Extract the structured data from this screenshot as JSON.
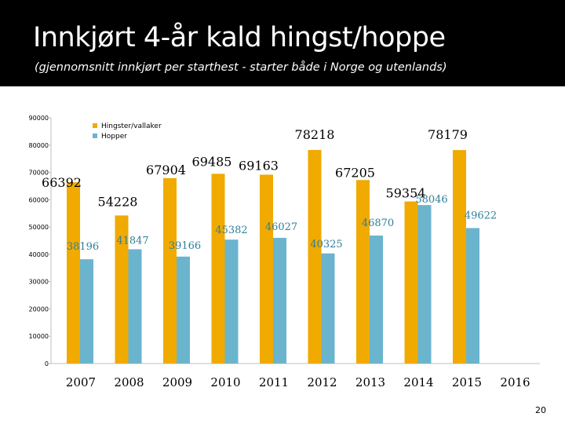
{
  "slide": {
    "title": "Innkjørt 4-år kald hingst/hoppe",
    "subtitle": "(gjennomsnitt innkjørt per starthest - starter både i Norge og utenlands)",
    "page_number": "20"
  },
  "colors": {
    "header_bg": "#000000",
    "series_a": "#F0AA00",
    "series_b": "#6BB4CE",
    "label_a": "#000000",
    "label_b": "#2E7F9A"
  },
  "chart_data": {
    "type": "bar",
    "categories": [
      "2007",
      "2008",
      "2009",
      "2010",
      "2011",
      "2012",
      "2013",
      "2014",
      "2015",
      "2016"
    ],
    "series": [
      {
        "name": "Hingster/vallaker",
        "values": [
          66392,
          54228,
          67904,
          69485,
          69163,
          78218,
          67205,
          59354,
          78179,
          null
        ]
      },
      {
        "name": "Hopper",
        "values": [
          38196,
          41847,
          39166,
          45382,
          46027,
          40325,
          46870,
          58046,
          49622,
          null
        ]
      }
    ],
    "ylim": [
      0,
      90000
    ],
    "yticks": [
      "0",
      "10000",
      "20000",
      "30000",
      "40000",
      "50000",
      "60000",
      "70000",
      "80000",
      "90000"
    ],
    "grid": false,
    "legend": "top-left"
  }
}
